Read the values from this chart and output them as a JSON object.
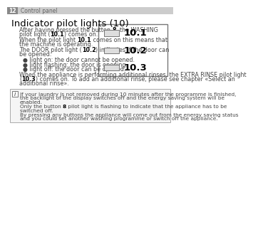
{
  "page_num": "12",
  "header_text": "Control panel",
  "header_bg": "#888888",
  "bg_color": "#ffffff",
  "title": "Indicator pilot lights (10)",
  "title_fontsize": 9.5,
  "body_fontsize": 5.8,
  "info_fontsize": 5.3,
  "body_color": "#444444",
  "bold_color": "#000000",
  "indicator_labels": [
    "10.1",
    "10.2",
    "10.3"
  ],
  "paragraphs_plain": [
    [
      "After having pressed the button ",
      "8",
      ", the WASHING"
    ],
    [
      "pilot light (",
      "10.1",
      ") comes on."
    ],
    [
      "When the pilot light ",
      "10.1",
      " comes on this means that"
    ],
    [
      "the machine is operating."
    ],
    [
      "The DOOR pilot light (",
      "10.2",
      ") indicates if the door can"
    ],
    [
      "be opened:"
    ],
    [
      "● light on: the door cannot be opened."
    ],
    [
      "● light flashing: the door is opening."
    ],
    [
      "● light off: the door can be opened."
    ],
    [
      "When the appliance is performing additional rinses, the EXTRA RINSE pilot light"
    ],
    [
      "(",
      "10.3",
      ") comes on. To add an additional rinse, please see chapter «Select an"
    ],
    [
      "additional rinse»."
    ]
  ],
  "info_lines": [
    [
      "If your laundry is not removed during 10 minutes after the programme is finished,"
    ],
    [
      "the backlight of the display switches off and the energy saving system will be"
    ],
    [
      "enabled."
    ],
    [
      "Only the button ",
      "8",
      " pilot light is flashing to indicate that the appliance has to be"
    ],
    [
      "switched off."
    ],
    [
      "By pressing any buttons the appliance will come out from the energy saving status"
    ],
    [
      "and you could set another washing programme or switch off the appliance."
    ]
  ],
  "para_groups": [
    [
      0,
      1
    ],
    [
      2,
      3
    ],
    [
      4,
      5
    ],
    [
      6
    ],
    [
      7
    ],
    [
      8
    ],
    [
      9,
      10,
      11
    ]
  ]
}
